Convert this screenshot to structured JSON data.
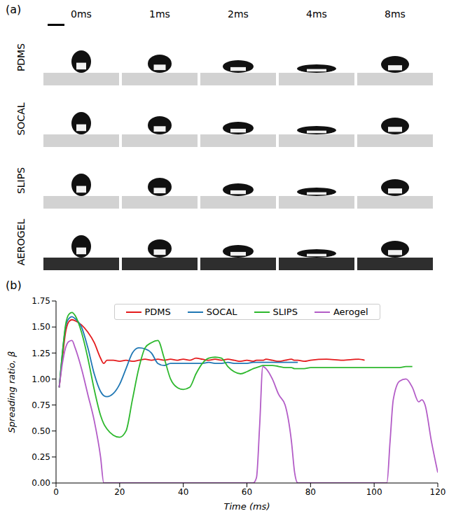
{
  "panel_a": {
    "label": "(a)",
    "columns": [
      "0ms",
      "1ms",
      "2ms",
      "4ms",
      "8ms"
    ],
    "rows": [
      "PDMS",
      "SOCAL",
      "SLIPS",
      "AEROGEL"
    ]
  },
  "panel_b": {
    "label": "(b)"
  },
  "chart_data": {
    "type": "line",
    "x_label": "Time (ms)",
    "y_label": "Spreading ratio, β",
    "xlim": [
      0,
      120
    ],
    "xticks": [
      0,
      20,
      40,
      60,
      80,
      100,
      120
    ],
    "ylim": [
      0,
      1.75
    ],
    "yticks": [
      {
        "value": 0,
        "label": "0.00"
      },
      0.25,
      {
        "value": 0.5,
        "label": "0.50"
      },
      0.75,
      {
        "value": 1,
        "label": "1.00"
      },
      1.25,
      {
        "value": 1.5,
        "label": "1.50"
      },
      1.75
    ],
    "grid": false,
    "legend": "top",
    "x": [
      1,
      2,
      3,
      4,
      5,
      6,
      8,
      10,
      12,
      14,
      15,
      16,
      18,
      20,
      22,
      24,
      26,
      28,
      30,
      32,
      34,
      36,
      38,
      40,
      42,
      44,
      46,
      48,
      50,
      52,
      54,
      56,
      58,
      60,
      62,
      63,
      64,
      65,
      66,
      68,
      70,
      72,
      74,
      75,
      76,
      78,
      80,
      85,
      90,
      95,
      97,
      100,
      104,
      105,
      106,
      108,
      110,
      112,
      114,
      115,
      116,
      118,
      120
    ],
    "series": [
      {
        "name": "PDMS",
        "color": "#e41a1c",
        "values": [
          0.92,
          1.2,
          1.45,
          1.55,
          1.57,
          1.56,
          1.52,
          1.45,
          1.35,
          1.2,
          1.15,
          1.18,
          1.18,
          1.17,
          1.18,
          1.17,
          1.18,
          1.19,
          1.18,
          1.19,
          1.18,
          1.19,
          1.18,
          1.19,
          1.18,
          1.2,
          1.19,
          1.18,
          1.19,
          1.18,
          1.19,
          1.18,
          1.17,
          1.18,
          1.17,
          1.18,
          1.18,
          1.18,
          1.19,
          1.18,
          1.17,
          1.18,
          1.19,
          1.18,
          1.18,
          1.17,
          1.18,
          1.19,
          1.18,
          1.19,
          1.18,
          null,
          null,
          null,
          null,
          null,
          null,
          null,
          null,
          null,
          null,
          null,
          null
        ]
      },
      {
        "name": "SOCAL",
        "color": "#1f77b4",
        "values": [
          0.92,
          1.25,
          1.5,
          1.58,
          1.6,
          1.58,
          1.5,
          1.3,
          1.05,
          0.88,
          0.84,
          0.83,
          0.86,
          0.95,
          1.1,
          1.25,
          1.3,
          1.29,
          1.25,
          1.15,
          1.13,
          1.15,
          1.15,
          1.15,
          1.15,
          1.15,
          1.15,
          1.16,
          1.15,
          1.15,
          1.16,
          1.15,
          1.15,
          1.15,
          1.16,
          1.16,
          1.16,
          1.16,
          1.16,
          1.16,
          1.16,
          1.16,
          1.16,
          1.16,
          1.16,
          null,
          null,
          null,
          null,
          null,
          null,
          null,
          null,
          null,
          null,
          null,
          null,
          null,
          null,
          null,
          null,
          null,
          null
        ]
      },
      {
        "name": "SLIPS",
        "color": "#2db82d",
        "values": [
          0.92,
          1.25,
          1.52,
          1.62,
          1.64,
          1.61,
          1.45,
          1.2,
          0.9,
          0.65,
          0.57,
          0.52,
          0.46,
          0.44,
          0.5,
          0.8,
          1.1,
          1.3,
          1.35,
          1.37,
          1.2,
          1.0,
          0.92,
          0.9,
          0.92,
          1.05,
          1.15,
          1.2,
          1.21,
          1.2,
          1.12,
          1.07,
          1.05,
          1.07,
          1.1,
          1.11,
          1.12,
          1.13,
          1.13,
          1.13,
          1.12,
          1.11,
          1.11,
          1.1,
          1.1,
          1.1,
          1.11,
          1.11,
          1.11,
          1.11,
          1.11,
          1.11,
          1.11,
          1.11,
          1.11,
          1.11,
          1.12,
          1.12,
          null,
          null,
          null,
          null,
          null
        ]
      },
      {
        "name": "Aerogel",
        "color": "#b35cc7",
        "values": [
          0.92,
          1.15,
          1.3,
          1.36,
          1.37,
          1.3,
          1.1,
          0.85,
          0.6,
          0.25,
          0,
          0,
          0,
          0,
          0,
          0,
          0,
          0,
          0,
          0,
          0,
          0,
          0,
          0,
          0,
          0,
          0,
          0,
          0,
          0,
          0,
          0,
          0,
          0,
          0,
          0.05,
          0.55,
          1.12,
          1.1,
          1.0,
          0.85,
          0.75,
          0.4,
          0.1,
          0,
          0,
          0,
          0,
          0,
          0,
          0,
          0,
          0,
          0.4,
          0.8,
          0.98,
          1.0,
          0.92,
          0.78,
          0.8,
          0.75,
          0.4,
          0.1
        ]
      }
    ]
  }
}
